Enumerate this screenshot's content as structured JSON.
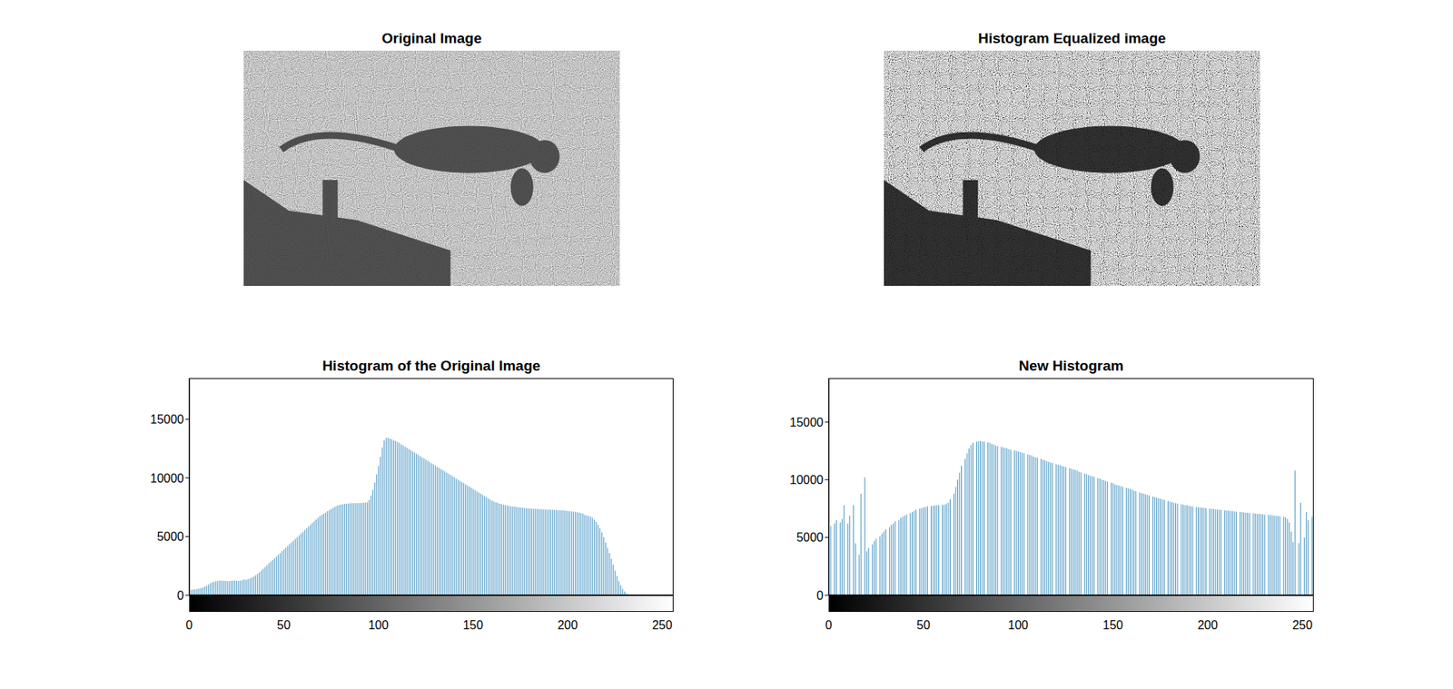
{
  "images": [
    {
      "title": "Original Image"
    },
    {
      "title": "Histogram Equalized image"
    }
  ],
  "chart_data": [
    {
      "type": "bar",
      "title": "Histogram of the Original Image",
      "color": "#3d8fbf",
      "xlim": [
        0,
        256
      ],
      "xticks": [
        0,
        50,
        100,
        150,
        200,
        250
      ],
      "ylim": [
        0,
        18500
      ],
      "yticks": [
        0,
        5000,
        10000,
        15000
      ],
      "x": [
        0,
        1,
        2,
        3,
        4,
        5,
        6,
        7,
        8,
        9,
        10,
        11,
        12,
        13,
        14,
        15,
        16,
        17,
        18,
        19,
        20,
        21,
        22,
        23,
        24,
        25,
        26,
        27,
        28,
        29,
        30,
        31,
        32,
        33,
        34,
        35,
        36,
        37,
        38,
        39,
        40,
        41,
        42,
        43,
        44,
        45,
        46,
        47,
        48,
        49,
        50,
        51,
        52,
        53,
        54,
        55,
        56,
        57,
        58,
        59,
        60,
        61,
        62,
        63,
        64,
        65,
        66,
        67,
        68,
        69,
        70,
        71,
        72,
        73,
        74,
        75,
        76,
        77,
        78,
        79,
        80,
        81,
        82,
        83,
        84,
        85,
        86,
        87,
        88,
        89,
        90,
        91,
        92,
        93,
        94,
        95,
        96,
        97,
        98,
        99,
        100,
        101,
        102,
        103,
        104,
        105,
        106,
        107,
        108,
        109,
        110,
        111,
        112,
        113,
        114,
        115,
        116,
        117,
        118,
        119,
        120,
        121,
        122,
        123,
        124,
        125,
        126,
        127,
        128,
        129,
        130,
        131,
        132,
        133,
        134,
        135,
        136,
        137,
        138,
        139,
        140,
        141,
        142,
        143,
        144,
        145,
        146,
        147,
        148,
        149,
        150,
        151,
        152,
        153,
        154,
        155,
        156,
        157,
        158,
        159,
        160,
        161,
        162,
        163,
        164,
        165,
        166,
        167,
        168,
        169,
        170,
        171,
        172,
        173,
        174,
        175,
        176,
        177,
        178,
        179,
        180,
        181,
        182,
        183,
        184,
        185,
        186,
        187,
        188,
        189,
        190,
        191,
        192,
        193,
        194,
        195,
        196,
        197,
        198,
        199,
        200,
        201,
        202,
        203,
        204,
        205,
        206,
        207,
        208,
        209,
        210,
        211,
        212,
        213,
        214,
        215,
        216,
        217,
        218,
        219,
        220,
        221,
        222,
        223,
        224,
        225,
        226,
        227,
        228,
        229,
        230,
        231,
        232,
        233,
        234,
        235,
        236,
        237,
        238,
        239,
        240,
        241,
        242,
        243,
        244,
        245,
        246,
        247,
        248,
        249,
        250,
        251,
        252,
        253,
        254,
        255
      ],
      "values": [
        400,
        450,
        480,
        500,
        520,
        560,
        600,
        650,
        720,
        800,
        900,
        1000,
        1100,
        1150,
        1200,
        1230,
        1250,
        1240,
        1230,
        1220,
        1210,
        1200,
        1220,
        1240,
        1250,
        1230,
        1220,
        1240,
        1280,
        1350,
        1300,
        1350,
        1420,
        1500,
        1600,
        1700,
        1820,
        1950,
        2100,
        2250,
        2400,
        2550,
        2700,
        2850,
        3000,
        3150,
        3300,
        3450,
        3600,
        3750,
        3900,
        4050,
        4200,
        4350,
        4500,
        4650,
        4800,
        4950,
        5100,
        5250,
        5400,
        5550,
        5700,
        5850,
        6000,
        6150,
        6300,
        6450,
        6600,
        6750,
        6850,
        6950,
        7050,
        7150,
        7250,
        7350,
        7450,
        7550,
        7620,
        7680,
        7720,
        7750,
        7780,
        7800,
        7820,
        7830,
        7840,
        7850,
        7850,
        7850,
        7860,
        7870,
        7880,
        7900,
        7920,
        8100,
        8500,
        9000,
        9600,
        10300,
        11000,
        11800,
        12600,
        13200,
        13400,
        13400,
        13350,
        13300,
        13200,
        13150,
        13050,
        12950,
        12850,
        12750,
        12650,
        12550,
        12450,
        12350,
        12250,
        12150,
        12050,
        11950,
        11850,
        11750,
        11650,
        11550,
        11450,
        11350,
        11250,
        11150,
        11050,
        10950,
        10850,
        10750,
        10650,
        10550,
        10450,
        10350,
        10250,
        10150,
        10050,
        9950,
        9850,
        9750,
        9650,
        9550,
        9450,
        9350,
        9250,
        9150,
        9050,
        8950,
        8850,
        8750,
        8650,
        8550,
        8450,
        8350,
        8250,
        8150,
        8050,
        7980,
        7920,
        7860,
        7800,
        7760,
        7720,
        7680,
        7640,
        7600,
        7580,
        7560,
        7540,
        7520,
        7500,
        7480,
        7460,
        7440,
        7420,
        7400,
        7390,
        7380,
        7370,
        7360,
        7350,
        7340,
        7330,
        7320,
        7310,
        7300,
        7300,
        7290,
        7280,
        7270,
        7260,
        7250,
        7240,
        7230,
        7220,
        7200,
        7180,
        7160,
        7140,
        7120,
        7100,
        7080,
        7050,
        7000,
        6950,
        6850,
        6800,
        6750,
        6700,
        6600,
        6450,
        6250,
        6000,
        5700,
        5350,
        4950,
        4500,
        4050,
        3600,
        3100,
        2600,
        2100,
        1650,
        1200,
        850,
        550,
        320,
        170,
        80,
        30,
        10,
        0,
        0,
        0,
        0,
        0,
        0,
        0,
        0,
        0,
        0,
        0,
        0,
        0,
        0,
        0,
        0,
        0,
        0,
        0,
        0,
        0
      ]
    },
    {
      "type": "bar",
      "title": "New Histogram",
      "color": "#3d8fbf",
      "xlim": [
        0,
        256
      ],
      "xticks": [
        0,
        50,
        100,
        150,
        200,
        250
      ],
      "ylim": [
        0,
        18800
      ],
      "yticks": [
        0,
        5000,
        10000,
        15000
      ],
      "x": [
        0,
        1,
        2,
        3,
        4,
        5,
        6,
        7,
        8,
        9,
        10,
        11,
        12,
        13,
        14,
        15,
        16,
        17,
        18,
        19,
        20,
        21,
        22,
        23,
        24,
        25,
        26,
        27,
        28,
        29,
        30,
        31,
        32,
        33,
        34,
        35,
        36,
        37,
        38,
        39,
        40,
        41,
        42,
        43,
        44,
        45,
        46,
        47,
        48,
        49,
        50,
        51,
        52,
        53,
        54,
        55,
        56,
        57,
        58,
        59,
        60,
        61,
        62,
        63,
        64,
        65,
        66,
        67,
        68,
        69,
        70,
        71,
        72,
        73,
        74,
        75,
        76,
        77,
        78,
        79,
        80,
        81,
        82,
        83,
        84,
        85,
        86,
        87,
        88,
        89,
        90,
        91,
        92,
        93,
        94,
        95,
        96,
        97,
        98,
        99,
        100,
        101,
        102,
        103,
        104,
        105,
        106,
        107,
        108,
        109,
        110,
        111,
        112,
        113,
        114,
        115,
        116,
        117,
        118,
        119,
        120,
        121,
        122,
        123,
        124,
        125,
        126,
        127,
        128,
        129,
        130,
        131,
        132,
        133,
        134,
        135,
        136,
        137,
        138,
        139,
        140,
        141,
        142,
        143,
        144,
        145,
        146,
        147,
        148,
        149,
        150,
        151,
        152,
        153,
        154,
        155,
        156,
        157,
        158,
        159,
        160,
        161,
        162,
        163,
        164,
        165,
        166,
        167,
        168,
        169,
        170,
        171,
        172,
        173,
        174,
        175,
        176,
        177,
        178,
        179,
        180,
        181,
        182,
        183,
        184,
        185,
        186,
        187,
        188,
        189,
        190,
        191,
        192,
        193,
        194,
        195,
        196,
        197,
        198,
        199,
        200,
        201,
        202,
        203,
        204,
        205,
        206,
        207,
        208,
        209,
        210,
        211,
        212,
        213,
        214,
        215,
        216,
        217,
        218,
        219,
        220,
        221,
        222,
        223,
        224,
        225,
        226,
        227,
        228,
        229,
        230,
        231,
        232,
        233,
        234,
        235,
        236,
        237,
        238,
        239,
        240,
        241,
        242,
        243,
        244,
        245,
        246,
        247,
        248,
        249,
        250,
        251,
        252,
        253,
        254,
        255
      ],
      "values": [
        5800,
        6000,
        0,
        6200,
        6500,
        0,
        6300,
        6600,
        7800,
        0,
        6200,
        6900,
        0,
        7800,
        4500,
        0,
        3500,
        8800,
        0,
        10200,
        3800,
        4100,
        0,
        4400,
        4700,
        4900,
        0,
        5100,
        5300,
        5500,
        5700,
        0,
        5900,
        6100,
        6200,
        6400,
        0,
        6500,
        6700,
        6800,
        6900,
        7000,
        0,
        7100,
        7200,
        7300,
        7400,
        0,
        7500,
        7550,
        7600,
        7650,
        7700,
        0,
        7720,
        7750,
        7780,
        7800,
        7800,
        0,
        7820,
        7850,
        7900,
        8000,
        8300,
        0,
        8800,
        9400,
        10000,
        10600,
        11200,
        0,
        11800,
        12300,
        12700,
        13000,
        13200,
        0,
        13300,
        13350,
        13350,
        13300,
        13300,
        0,
        13250,
        13200,
        13100,
        13050,
        12950,
        12900,
        0,
        12850,
        12800,
        12750,
        12700,
        12650,
        12600,
        0,
        12550,
        12500,
        12450,
        12400,
        12350,
        12300,
        0,
        12200,
        12150,
        12100,
        12000,
        11950,
        11900,
        0,
        11800,
        11750,
        11700,
        11600,
        11550,
        11500,
        11450,
        0,
        11350,
        11300,
        11250,
        11200,
        11150,
        11100,
        0,
        11000,
        10950,
        10900,
        10850,
        10800,
        10700,
        10650,
        0,
        10550,
        10500,
        10400,
        10350,
        10300,
        10250,
        0,
        10150,
        10100,
        10000,
        9950,
        9900,
        9850,
        0,
        9750,
        9700,
        9600,
        9550,
        9500,
        9450,
        9400,
        0,
        9300,
        9250,
        9200,
        9150,
        9050,
        9000,
        0,
        8900,
        8850,
        8800,
        8750,
        8700,
        8650,
        0,
        8550,
        8500,
        8450,
        8400,
        8350,
        8300,
        8250,
        0,
        8150,
        8100,
        8050,
        8000,
        7980,
        7950,
        0,
        7900,
        7850,
        7800,
        7780,
        7750,
        7720,
        7700,
        0,
        7650,
        7620,
        7600,
        7580,
        7560,
        7540,
        0,
        7500,
        7480,
        7460,
        7440,
        7420,
        7400,
        7380,
        0,
        7360,
        7340,
        7320,
        7300,
        7280,
        7260,
        7240,
        0,
        7220,
        7200,
        7180,
        7160,
        7140,
        7120,
        0,
        7100,
        7080,
        7060,
        7040,
        7020,
        7000,
        6980,
        0,
        6960,
        6940,
        6920,
        6900,
        6880,
        6860,
        6840,
        0,
        6800,
        6750,
        6600,
        6300,
        5500,
        4600,
        10800,
        0,
        4500,
        8000,
        0,
        5000,
        7200,
        6500,
        0,
        6800
      ]
    }
  ]
}
